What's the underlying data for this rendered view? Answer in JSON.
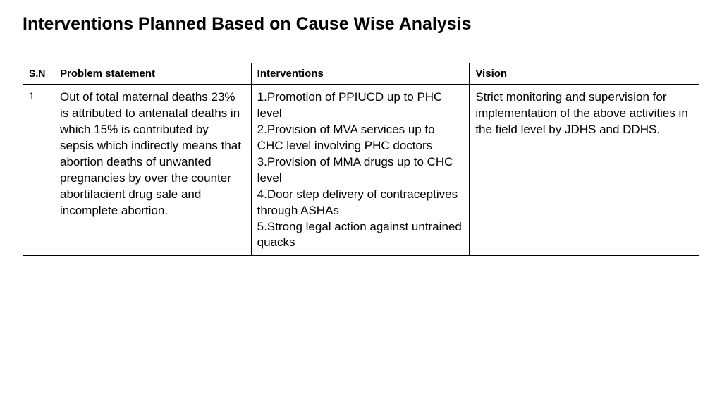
{
  "title": "Interventions Planned Based on Cause Wise Analysis",
  "table": {
    "headers": {
      "sn": "S.N",
      "problem": "Problem statement",
      "interventions": "Interventions",
      "vision": "Vision"
    },
    "rows": [
      {
        "sn": "1",
        "problem": "Out of total maternal deaths 23% is attributed to antenatal deaths in which 15% is contributed by sepsis which indirectly means that abortion deaths of unwanted pregnancies by over the counter abortifacient drug sale and incomplete abortion.",
        "interventions": "1.Promotion of PPIUCD up to PHC level\n2.Provision of MVA services up to CHC level involving PHC doctors\n3.Provision of MMA drugs up to CHC level\n4.Door step delivery of contraceptives through ASHAs\n5.Strong legal action against untrained quacks",
        "vision": "Strict monitoring and supervision for implementation of the above activities in the field level by JDHS and DDHS."
      }
    ]
  }
}
